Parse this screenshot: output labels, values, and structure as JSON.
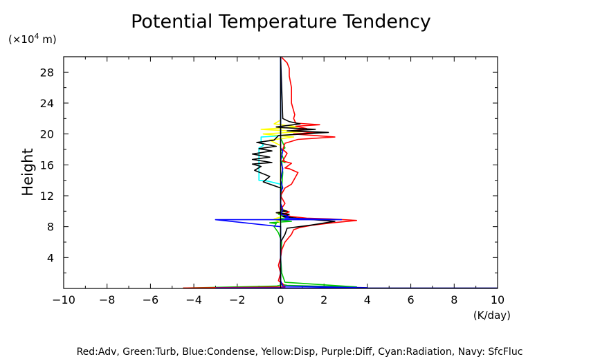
{
  "chart_data": {
    "type": "line",
    "title": "Potential Temperature Tendency",
    "ylabel": "Height",
    "yunit_prefix": "(×10",
    "yunit_exp": "4",
    "yunit_suffix": " m)",
    "xunit": "(K/day)",
    "legend_text": "Red:Adv, Green:Turb, Blue:Condense, Yellow:Disp, Purple:Diff, Cyan:Radiation, Navy: SfcFluc",
    "xlim": [
      -10,
      10
    ],
    "ylim": [
      0,
      30
    ],
    "xticks": [
      -10,
      -8,
      -6,
      -4,
      -2,
      0,
      2,
      4,
      6,
      8,
      10
    ],
    "xtick_labels": [
      "−10",
      "−8",
      "−6",
      "−4",
      "−2",
      "0",
      "2",
      "4",
      "6",
      "8",
      "10"
    ],
    "yticks": [
      4,
      8,
      12,
      16,
      20,
      24,
      28
    ],
    "ytick_labels": [
      "4",
      "8",
      "12",
      "16",
      "20",
      "24",
      "28"
    ],
    "grid": false,
    "series": [
      {
        "color": "#00c800",
        "points": [
          [
            -4.5,
            0.05
          ],
          [
            -0.2,
            0.3
          ],
          [
            0.1,
            0.5
          ],
          [
            0.3,
            0.4
          ],
          [
            1.5,
            0.3
          ],
          [
            3.5,
            0.2
          ],
          [
            0.2,
            0.8
          ],
          [
            0.05,
            2
          ],
          [
            0,
            4
          ],
          [
            0.05,
            6
          ],
          [
            -0.1,
            7.2
          ],
          [
            -0.3,
            8
          ],
          [
            -0.2,
            8.4
          ],
          [
            -0.5,
            8.5
          ],
          [
            0.5,
            8.7
          ],
          [
            -0.2,
            8.9
          ],
          [
            0.3,
            9.2
          ],
          [
            -0.1,
            9.6
          ],
          [
            0.1,
            10.2
          ],
          [
            0,
            11
          ],
          [
            0.05,
            13
          ],
          [
            0.1,
            15
          ],
          [
            0.05,
            16.5
          ],
          [
            0.2,
            16.3
          ],
          [
            0.1,
            17
          ],
          [
            0,
            17.8
          ],
          [
            0.2,
            18.2
          ],
          [
            0,
            19.5
          ],
          [
            0,
            30
          ]
        ]
      },
      {
        "color": "#ffff00",
        "points": [
          [
            0,
            0.5
          ],
          [
            0,
            8.5
          ],
          [
            -0.3,
            9
          ],
          [
            0.3,
            9.5
          ],
          [
            -0.2,
            9.8
          ],
          [
            0.2,
            10.1
          ],
          [
            0,
            10.5
          ],
          [
            0,
            18.5
          ],
          [
            -0.5,
            19.2
          ],
          [
            0.6,
            19.6
          ],
          [
            -0.8,
            20
          ],
          [
            1,
            20.3
          ],
          [
            -0.9,
            20.6
          ],
          [
            0.8,
            20.9
          ],
          [
            -0.3,
            21.3
          ],
          [
            0,
            21.8
          ],
          [
            0,
            30
          ]
        ]
      },
      {
        "color": "#00ffff",
        "points": [
          [
            0,
            0.5
          ],
          [
            0,
            13.5
          ],
          [
            -0.6,
            13.9
          ],
          [
            -1.0,
            14
          ],
          [
            -1.0,
            16
          ],
          [
            -1.0,
            18.2
          ],
          [
            -0.8,
            18.5
          ],
          [
            -0.9,
            19
          ],
          [
            -0.9,
            19.6
          ],
          [
            -0.3,
            19.7
          ],
          [
            0,
            19.8
          ],
          [
            0,
            30
          ]
        ]
      },
      {
        "color": "#ff0000",
        "points": [
          [
            -4.5,
            0.05
          ],
          [
            0.2,
            0.2
          ],
          [
            0.1,
            0.6
          ],
          [
            -0.1,
            1
          ],
          [
            0,
            2
          ],
          [
            -0.1,
            3
          ],
          [
            0,
            4
          ],
          [
            0.05,
            5
          ],
          [
            0.2,
            6
          ],
          [
            0.5,
            7
          ],
          [
            0.6,
            7.6
          ],
          [
            0.9,
            7.9
          ],
          [
            1.5,
            8.2
          ],
          [
            2.4,
            8.5
          ],
          [
            3.5,
            8.8
          ],
          [
            2.3,
            9.0
          ],
          [
            1.2,
            9.1
          ],
          [
            0.5,
            9.3
          ],
          [
            0.1,
            9.6
          ],
          [
            0.4,
            9.9
          ],
          [
            0,
            10.2
          ],
          [
            0.2,
            11
          ],
          [
            0,
            12
          ],
          [
            0.2,
            13
          ],
          [
            0.5,
            13.5
          ],
          [
            0.6,
            14
          ],
          [
            0.8,
            15
          ],
          [
            0.4,
            15.5
          ],
          [
            0.2,
            15.6
          ],
          [
            0.5,
            16.2
          ],
          [
            0.1,
            16.5
          ],
          [
            0.3,
            17.5
          ],
          [
            0.1,
            18
          ],
          [
            0.2,
            18.8
          ],
          [
            0.8,
            19.3
          ],
          [
            2.5,
            19.6
          ],
          [
            0.6,
            20
          ],
          [
            1.6,
            20.2
          ],
          [
            0.5,
            20.4
          ],
          [
            1.2,
            20.7
          ],
          [
            0.7,
            21.0
          ],
          [
            1.8,
            21.2
          ],
          [
            0.7,
            21.4
          ],
          [
            0.6,
            22
          ],
          [
            0.65,
            22.5
          ],
          [
            0.5,
            24
          ],
          [
            0.5,
            26
          ],
          [
            0.4,
            27.5
          ],
          [
            0.4,
            28.5
          ],
          [
            0.3,
            29.2
          ],
          [
            0.05,
            29.9
          ]
        ]
      },
      {
        "color": "#000000",
        "points": [
          [
            0,
            0.5
          ],
          [
            0,
            6
          ],
          [
            0.2,
            7
          ],
          [
            0.3,
            7.8
          ],
          [
            1.4,
            8.2
          ],
          [
            2.5,
            8.7
          ],
          [
            1.0,
            9.0
          ],
          [
            0.1,
            9.3
          ],
          [
            0.4,
            9.6
          ],
          [
            -0.2,
            9.8
          ],
          [
            0.3,
            10
          ],
          [
            0,
            10.2
          ],
          [
            0,
            13
          ],
          [
            -0.8,
            13.8
          ],
          [
            -0.5,
            14.5
          ],
          [
            -1.2,
            15.3
          ],
          [
            -0.9,
            15.8
          ],
          [
            -1.3,
            16.1
          ],
          [
            -0.4,
            16.3
          ],
          [
            -1.3,
            16.7
          ],
          [
            -0.5,
            17
          ],
          [
            -1.3,
            17.4
          ],
          [
            -0.4,
            17.8
          ],
          [
            -1.0,
            18.1
          ],
          [
            -0.2,
            18.4
          ],
          [
            -1.1,
            18.9
          ],
          [
            -0.3,
            19.2
          ],
          [
            -0.1,
            19.8
          ],
          [
            1.0,
            20
          ],
          [
            2.2,
            20.2
          ],
          [
            0.3,
            20.4
          ],
          [
            1.6,
            20.6
          ],
          [
            0.2,
            20.8
          ],
          [
            -0.2,
            20.9
          ],
          [
            0.9,
            21.3
          ],
          [
            0.4,
            21.6
          ],
          [
            0.1,
            22
          ],
          [
            0,
            30
          ]
        ]
      },
      {
        "color": "#0000ff",
        "points": [
          [
            -3.0,
            0.05
          ],
          [
            4,
            0.1
          ],
          [
            0.1,
            0.3
          ],
          [
            0,
            1
          ],
          [
            0,
            8
          ],
          [
            -3,
            8.9
          ],
          [
            2.8,
            8.9
          ],
          [
            0.2,
            9.1
          ],
          [
            0.4,
            9.3
          ],
          [
            0,
            9.6
          ],
          [
            0.1,
            10.2
          ],
          [
            0,
            11
          ],
          [
            0,
            12.5
          ],
          [
            0.1,
            13
          ],
          [
            0,
            14
          ],
          [
            0.1,
            15.5
          ],
          [
            0,
            16.5
          ],
          [
            0.1,
            17.8
          ],
          [
            0,
            18.2
          ],
          [
            0,
            30
          ]
        ]
      },
      {
        "color": "#000080",
        "points": [
          [
            3.5,
            0.05
          ],
          [
            10,
            0.05
          ]
        ]
      }
    ],
    "zero_line_color": "#000000"
  }
}
